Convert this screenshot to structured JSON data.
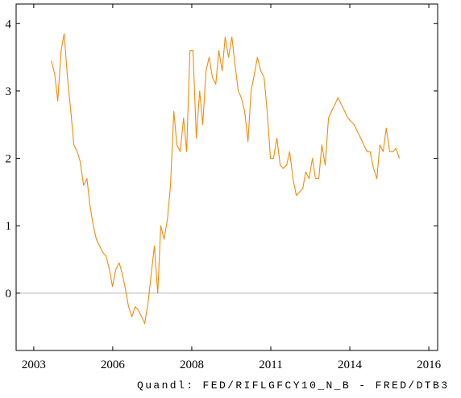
{
  "chart_data": {
    "type": "line",
    "caption": "Quandl:  FED/RIFLGFCY10_N_B - FRED/DTB3",
    "xlim": [
      2002.62,
      2016.49
    ],
    "ylim": [
      -0.85,
      4.29
    ],
    "xticks": [
      {
        "value": 2003.2,
        "label": "2003"
      },
      {
        "value": 2005.8,
        "label": "2006"
      },
      {
        "value": 2008.4,
        "label": "2008"
      },
      {
        "value": 2011.0,
        "label": "2011"
      },
      {
        "value": 2013.6,
        "label": "2014"
      },
      {
        "value": 2016.2,
        "label": "2016"
      }
    ],
    "yticks": [
      0,
      1,
      2,
      3,
      4
    ],
    "baseline": 0,
    "series": [
      {
        "color": "#f7890a",
        "x": [
          2003.78,
          2003.89,
          2003.99,
          2004.1,
          2004.2,
          2004.31,
          2004.42,
          2004.52,
          2004.63,
          2004.73,
          2004.84,
          2004.95,
          2005.05,
          2005.16,
          2005.26,
          2005.37,
          2005.48,
          2005.58,
          2005.69,
          2005.79,
          2005.9,
          2006.01,
          2006.11,
          2006.22,
          2006.32,
          2006.43,
          2006.54,
          2006.64,
          2006.75,
          2006.85,
          2006.96,
          2007.07,
          2007.17,
          2007.28,
          2007.38,
          2007.49,
          2007.6,
          2007.7,
          2007.81,
          2007.91,
          2008.02,
          2008.13,
          2008.23,
          2008.34,
          2008.44,
          2008.55,
          2008.66,
          2008.76,
          2008.87,
          2008.97,
          2009.08,
          2009.19,
          2009.29,
          2009.4,
          2009.5,
          2009.61,
          2009.72,
          2009.82,
          2009.93,
          2010.03,
          2010.14,
          2010.25,
          2010.35,
          2010.46,
          2010.56,
          2010.67,
          2010.78,
          2010.88,
          2010.99,
          2011.09,
          2011.2,
          2011.31,
          2011.41,
          2011.52,
          2011.62,
          2011.73,
          2011.84,
          2011.94,
          2012.05,
          2012.15,
          2012.26,
          2012.37,
          2012.47,
          2012.58,
          2012.68,
          2012.79,
          2012.9,
          2013.0,
          2013.11,
          2013.21,
          2013.32,
          2013.43,
          2013.53,
          2013.64,
          2013.74,
          2013.85,
          2013.96,
          2014.06,
          2014.17,
          2014.27,
          2014.38,
          2014.49,
          2014.59,
          2014.7,
          2014.8,
          2014.91,
          2015.02,
          2015.12,
          2015.23
        ],
        "values": [
          3.45,
          3.25,
          2.85,
          3.6,
          3.85,
          3.2,
          2.7,
          2.2,
          2.1,
          1.95,
          1.6,
          1.7,
          1.3,
          1.0,
          0.8,
          0.7,
          0.6,
          0.55,
          0.35,
          0.1,
          0.35,
          0.45,
          0.3,
          0.05,
          -0.2,
          -0.35,
          -0.2,
          -0.25,
          -0.35,
          -0.45,
          -0.15,
          0.3,
          0.7,
          0.0,
          1.0,
          0.8,
          1.1,
          1.6,
          2.7,
          2.2,
          2.1,
          2.6,
          2.1,
          3.6,
          3.6,
          2.3,
          3.0,
          2.5,
          3.3,
          3.5,
          3.2,
          3.1,
          3.6,
          3.3,
          3.8,
          3.5,
          3.8,
          3.4,
          3.0,
          2.9,
          2.7,
          2.25,
          3.0,
          3.25,
          3.5,
          3.3,
          3.2,
          2.7,
          2.0,
          2.0,
          2.3,
          1.9,
          1.85,
          1.9,
          2.1,
          1.7,
          1.45,
          1.5,
          1.55,
          1.8,
          1.7,
          2.0,
          1.7,
          1.7,
          2.2,
          1.9,
          2.6,
          2.7,
          2.8,
          2.9,
          2.8,
          2.7,
          2.6,
          2.55,
          2.5,
          2.4,
          2.3,
          2.2,
          2.1,
          2.1,
          1.85,
          1.7,
          2.2,
          2.1,
          2.45,
          2.1,
          2.1,
          2.15,
          2.0
        ]
      }
    ]
  }
}
